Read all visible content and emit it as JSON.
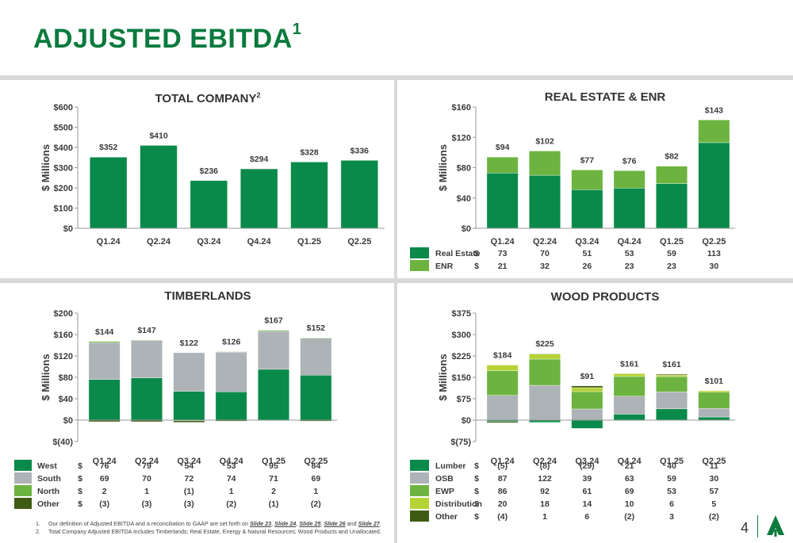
{
  "header": {
    "title": "ADJUSTED EBITDA",
    "title_sup": "1"
  },
  "colors": {
    "brand": "#0a7a3d",
    "dark_green": "#0a8a4a",
    "light_green": "#6cb43f",
    "gray": "#adb3b6",
    "lime": "#b5d335",
    "olive": "#3e5b12",
    "divider": "#d9d9d9"
  },
  "chart_data": [
    {
      "id": "total",
      "type": "bar",
      "title": "TOTAL COMPANY",
      "title_sup": "2",
      "ylabel": "$ Millions",
      "categories": [
        "Q1.24",
        "Q2.24",
        "Q3.24",
        "Q4.24",
        "Q1.25",
        "Q2.25"
      ],
      "ylim": [
        0,
        600
      ],
      "yticks": [
        0,
        100,
        200,
        300,
        400,
        500,
        600
      ],
      "ytick_labels": [
        "$0",
        "$100",
        "$200",
        "$300",
        "$400",
        "$500",
        "$600"
      ],
      "series": [
        {
          "values": [
            352,
            410,
            236,
            294,
            328,
            336
          ],
          "color": "#0a8a4a"
        }
      ],
      "totals": [
        352,
        410,
        236,
        294,
        328,
        336
      ],
      "total_labels": [
        "$352",
        "$410",
        "$236",
        "$294",
        "$328",
        "$336"
      ]
    },
    {
      "id": "realestate",
      "type": "bar",
      "stacked": true,
      "title": "REAL ESTATE & ENR",
      "ylabel": "$ Millions",
      "categories": [
        "Q1.24",
        "Q2.24",
        "Q3.24",
        "Q4.24",
        "Q1.25",
        "Q2.25"
      ],
      "ylim": [
        0,
        160
      ],
      "yticks": [
        0,
        40,
        80,
        120,
        160
      ],
      "ytick_labels": [
        "$0",
        "$40",
        "$80",
        "$120",
        "$160"
      ],
      "series": [
        {
          "name": "Real Estate",
          "values": [
            73,
            70,
            51,
            53,
            59,
            113
          ],
          "labels": [
            "73",
            "70",
            "51",
            "53",
            "59",
            "113"
          ],
          "color": "#0a8a4a"
        },
        {
          "name": "ENR",
          "values": [
            21,
            32,
            26,
            23,
            23,
            30
          ],
          "labels": [
            "21",
            "32",
            "26",
            "23",
            "23",
            "30"
          ],
          "color": "#6cb43f"
        }
      ],
      "totals": [
        94,
        102,
        77,
        76,
        82,
        143
      ],
      "total_labels": [
        "$94",
        "$102",
        "$77",
        "$76",
        "$82",
        "$143"
      ]
    },
    {
      "id": "timberlands",
      "type": "bar",
      "stacked": true,
      "title": "TIMBERLANDS",
      "ylabel": "$ Millions",
      "categories": [
        "Q1.24",
        "Q2.24",
        "Q3.24",
        "Q4.24",
        "Q1.25",
        "Q2.25"
      ],
      "ylim": [
        -40,
        200
      ],
      "yticks": [
        -40,
        0,
        40,
        80,
        120,
        160,
        200
      ],
      "ytick_labels": [
        "$(40)",
        "$0",
        "$40",
        "$80",
        "$120",
        "$160",
        "$200"
      ],
      "series": [
        {
          "name": "West",
          "values": [
            76,
            79,
            54,
            53,
            95,
            84
          ],
          "labels": [
            "76",
            "79",
            "54",
            "53",
            "95",
            "84"
          ],
          "color": "#0a8a4a"
        },
        {
          "name": "South",
          "values": [
            69,
            70,
            72,
            74,
            71,
            69
          ],
          "labels": [
            "69",
            "70",
            "72",
            "74",
            "71",
            "69"
          ],
          "color": "#adb3b6"
        },
        {
          "name": "North",
          "values": [
            2,
            1,
            -1,
            1,
            2,
            1
          ],
          "labels": [
            "2",
            "1",
            "(1)",
            "1",
            "2",
            "1"
          ],
          "color": "#6cb43f"
        },
        {
          "name": "Other",
          "values": [
            -3,
            -3,
            -3,
            -2,
            -1,
            -2
          ],
          "labels": [
            "(3)",
            "(3)",
            "(3)",
            "(2)",
            "(1)",
            "(2)"
          ],
          "color": "#3e5b12"
        }
      ],
      "totals": [
        144,
        147,
        122,
        126,
        167,
        152
      ],
      "total_labels": [
        "$144",
        "$147",
        "$122",
        "$126",
        "$167",
        "$152"
      ]
    },
    {
      "id": "woodproducts",
      "type": "bar",
      "stacked": true,
      "title": "WOOD PRODUCTS",
      "ylabel": "$ Millions",
      "categories": [
        "Q1.24",
        "Q2.24",
        "Q3.24",
        "Q4.24",
        "Q1.25",
        "Q2.25"
      ],
      "ylim": [
        -75,
        375
      ],
      "yticks": [
        -75,
        0,
        75,
        150,
        225,
        300,
        375
      ],
      "ytick_labels": [
        "$(75)",
        "$0",
        "$75",
        "$150",
        "$225",
        "$300",
        "$375"
      ],
      "series": [
        {
          "name": "Lumber",
          "values": [
            -5,
            -8,
            -29,
            21,
            40,
            11
          ],
          "labels": [
            "(5)",
            "(8)",
            "(29)",
            "21",
            "40",
            "11"
          ],
          "color": "#0a8a4a"
        },
        {
          "name": "OSB",
          "values": [
            87,
            122,
            39,
            63,
            59,
            30
          ],
          "labels": [
            "87",
            "122",
            "39",
            "63",
            "59",
            "30"
          ],
          "color": "#adb3b6"
        },
        {
          "name": "EWP",
          "values": [
            86,
            92,
            61,
            69,
            53,
            57
          ],
          "labels": [
            "86",
            "92",
            "61",
            "69",
            "53",
            "57"
          ],
          "color": "#6cb43f"
        },
        {
          "name": "Distribution",
          "values": [
            20,
            18,
            14,
            10,
            6,
            5
          ],
          "labels": [
            "20",
            "18",
            "14",
            "10",
            "6",
            "5"
          ],
          "color": "#b5d335"
        },
        {
          "name": "Other",
          "values": [
            -4,
            1,
            6,
            -2,
            3,
            -2
          ],
          "labels": [
            "(4)",
            "1",
            "6",
            "(2)",
            "3",
            "(2)"
          ],
          "color": "#3e5b12"
        }
      ],
      "totals": [
        184,
        225,
        91,
        161,
        161,
        101
      ],
      "total_labels": [
        "$184",
        "$225",
        "$91",
        "$161",
        "$161",
        "$101"
      ]
    }
  ],
  "legend_currency": "$",
  "footnotes": {
    "n1_num": "1.",
    "n1_text": "Our definition of Adjusted EBITDA and a reconciliation to GAAP are set forth on",
    "n1_links": [
      "Slide 23",
      "Slide 24",
      "Slide 25",
      "Slide 26",
      "Slide 27"
    ],
    "n2_num": "2.",
    "n2_text": "Total Company Adjusted EBITDA includes Timberlands; Real Estate, Energy & Natural Resources; Wood Products and Unallocated."
  },
  "page_number": "4"
}
